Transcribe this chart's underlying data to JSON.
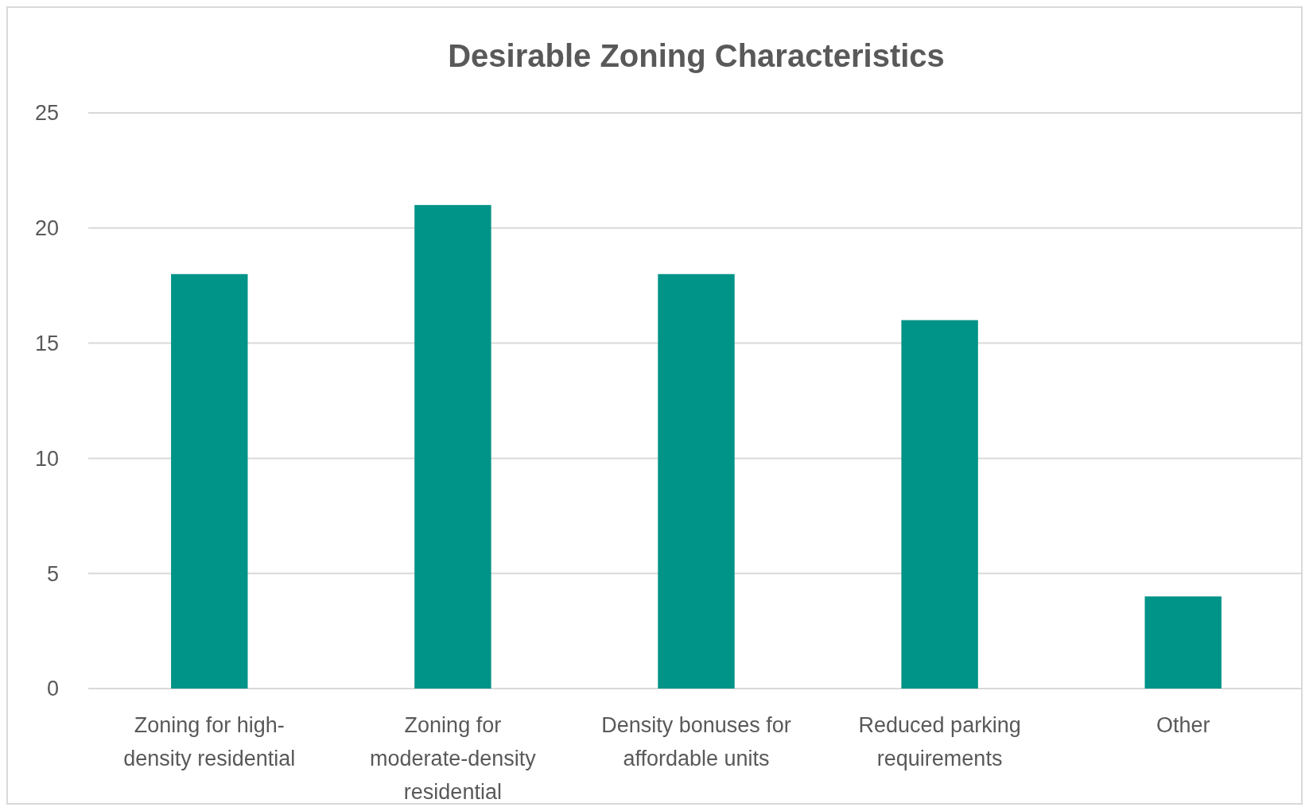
{
  "chart_data": {
    "type": "bar",
    "title": "Desirable Zoning Characteristics",
    "categories": [
      "Zoning for high-density residential",
      "Zoning for moderate-density residential",
      "Density bonuses for affordable units",
      "Reduced parking requirements",
      "Other"
    ],
    "values": [
      18,
      21,
      18,
      16,
      4
    ],
    "color": "#009387",
    "ylim": [
      0,
      25
    ],
    "yticks": [
      0,
      5,
      10,
      15,
      20,
      25
    ],
    "grid": "y"
  }
}
